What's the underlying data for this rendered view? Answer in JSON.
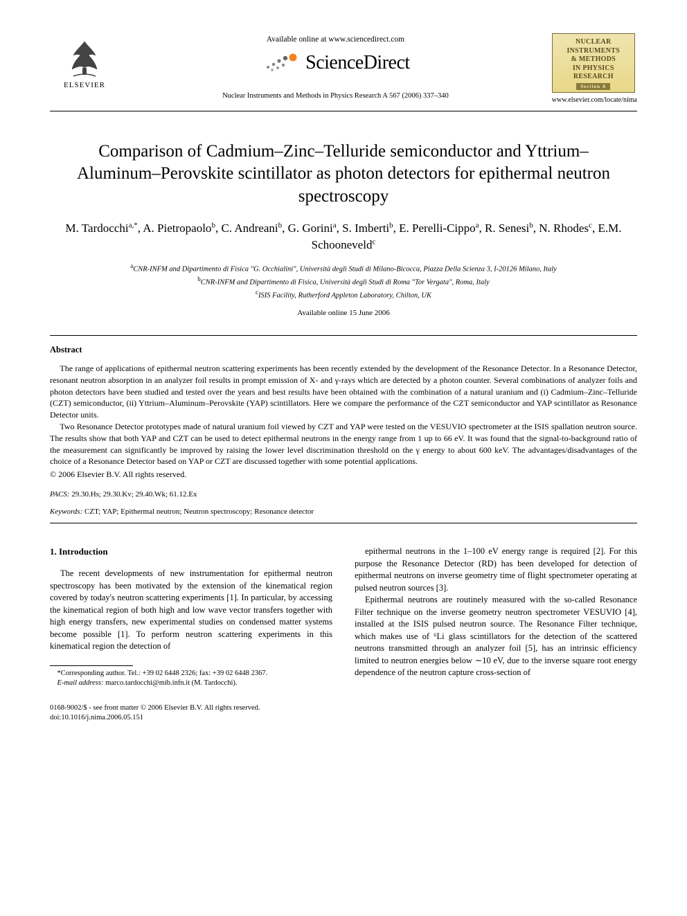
{
  "header": {
    "available_online": "Available online at www.sciencedirect.com",
    "sciencedirect": "ScienceDirect",
    "citation": "Nuclear Instruments and Methods in Physics Research A 567 (2006) 337–340",
    "journal_box": {
      "line1": "NUCLEAR",
      "line2": "INSTRUMENTS",
      "line3": "& METHODS",
      "line4": "IN PHYSICS",
      "line5": "RESEARCH",
      "section": "Section A"
    },
    "journal_url": "www.elsevier.com/locate/nima",
    "elsevier_label": "ELSEVIER"
  },
  "title": "Comparison of Cadmium–Zinc–Telluride semiconductor and Yttrium–Aluminum–Perovskite scintillator as photon detectors for epithermal neutron spectroscopy",
  "authors_html": "M. Tardocchi<sup>a,*</sup>, A. Pietropaolo<sup>b</sup>, C. Andreani<sup>b</sup>, G. Gorini<sup>a</sup>, S. Imberti<sup>b</sup>, E. Perelli-Cippo<sup>a</sup>, R. Senesi<sup>b</sup>, N. Rhodes<sup>c</sup>, E.M. Schooneveld<sup>c</sup>",
  "affiliations": {
    "a": "CNR-INFM and Dipartimento di Fisica \"G. Occhialini\", Università degli Studi di Milano-Bicocca, Piazza Della Scienza 3, I-20126 Milano, Italy",
    "b": "CNR-INFM and Dipartimento di Fisica, Università degli Studi di Roma \"Tor Vergata\", Roma, Italy",
    "c": "ISIS Facility, Rutherford Appleton Laboratory, Chilton, UK"
  },
  "available_date": "Available online 15 June 2006",
  "abstract": {
    "heading": "Abstract",
    "p1": "The range of applications of epithermal neutron scattering experiments has been recently extended by the development of the Resonance Detector. In a Resonance Detector, resonant neutron absorption in an analyzer foil results in prompt emission of X- and γ-rays which are detected by a photon counter. Several combinations of analyzer foils and photon detectors have been studied and tested over the years and best results have been obtained with the combination of a natural uranium and (i) Cadmium–Zinc–Telluride (CZT) semiconductor, (ii) Yttrium–Aluminum–Perovskite (YAP) scintillators. Here we compare the performance of the CZT semiconductor and YAP scintillator as Resonance Detector units.",
    "p2": "Two Resonance Detector prototypes made of natural uranium foil viewed by CZT and YAP were tested on the VESUVIO spectrometer at the ISIS spallation neutron source. The results show that both YAP and CZT can be used to detect epithermal neutrons in the energy range from 1 up to 66 eV. It was found that the signal-to-background ratio of the measurement can significantly be improved by raising the lower level discrimination threshold on the γ energy to about 600 keV. The advantages/disadvantages of the choice of a Resonance Detector based on YAP or CZT are discussed together with some potential applications.",
    "copyright": "© 2006 Elsevier B.V. All rights reserved."
  },
  "pacs": {
    "label": "PACS:",
    "value": "29.30.Hs; 29.30.Kv; 29.40.Wk; 61.12.Ex"
  },
  "keywords": {
    "label": "Keywords:",
    "value": "CZT; YAP; Epithermal neutron; Neutron spectroscopy; Resonance detector"
  },
  "intro": {
    "heading": "1. Introduction",
    "left_p1": "The recent developments of new instrumentation for epithermal neutron spectroscopy has been motivated by the extension of the kinematical region covered by today's neutron scattering experiments [1]. In particular, by accessing the kinematical region of both high and low wave vector transfers together with high energy transfers, new experimental studies on condensed matter systems become possible [1]. To perform neutron scattering experiments in this kinematical region the detection of",
    "right_p1": "epithermal neutrons in the 1–100 eV energy range is required [2]. For this purpose the Resonance Detector (RD) has been developed for detection of epithermal neutrons on inverse geometry time of flight spectrometer operating at pulsed neutron sources [3].",
    "right_p2": "Epithermal neutrons are routinely measured with the so-called Resonance Filter technique on the inverse geometry neutron spectrometer VESUVIO [4], installed at the ISIS pulsed neutron source. The Resonance Filter technique, which makes use of ⁶Li glass scintillators for the detection of the scattered neutrons transmitted through an analyzer foil [5], has an intrinsic efficiency limited to neutron energies below ∼10 eV, due to the inverse square root energy dependence of the neutron capture cross-section of"
  },
  "footnotes": {
    "corr": "*Corresponding author. Tel.: +39 02 6448 2326; fax: +39 02 6448 2367.",
    "email_label": "E-mail address:",
    "email": "marco.tardocchi@mib.infn.it (M. Tardocchi)."
  },
  "footer": {
    "line1": "0168-9002/$ - see front matter © 2006 Elsevier B.V. All rights reserved.",
    "line2": "doi:10.1016/j.nima.2006.05.151"
  },
  "colors": {
    "text": "#000000",
    "bg": "#ffffff",
    "box_border": "#7a6a3a",
    "box_grad_top": "#f0e4b0",
    "box_grad_bot": "#e8d888",
    "box_text": "#5a4a1a",
    "sd_orange": "#f58220"
  }
}
